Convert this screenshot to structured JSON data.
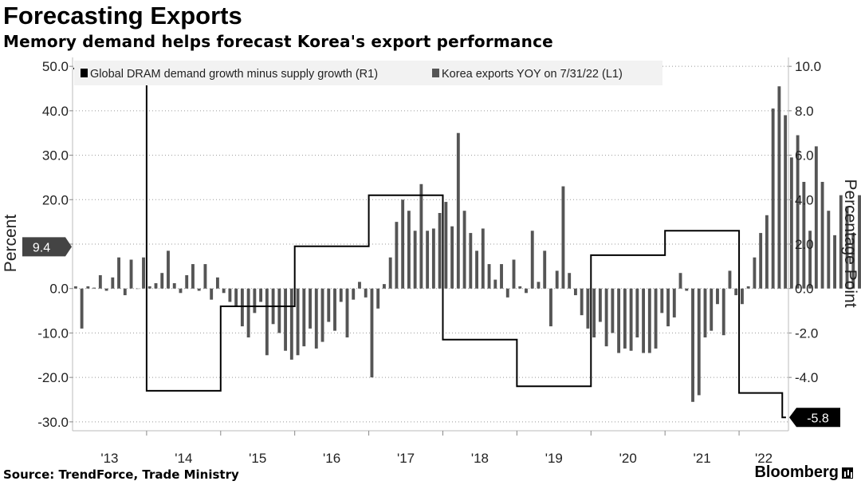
{
  "header": {
    "title": "Forecasting Exports",
    "subtitle": "Memory demand helps forecast Korea's export performance"
  },
  "footer": {
    "source": "Source: TrendForce, Trade Ministry",
    "brand": "Bloomberg"
  },
  "colors": {
    "bars": "#555555",
    "line": "#000000",
    "legend_bg": "#f2f2f2",
    "flag_bg": "#444444"
  },
  "chart_data": {
    "type": "bar+line",
    "left_axis": {
      "label": "Percent",
      "range": [
        -32,
        52
      ],
      "ticks": [
        50,
        40,
        30,
        20,
        10,
        0,
        -10,
        -20,
        -30
      ],
      "tick_labels": [
        "50.0",
        "40.0",
        "30.0",
        "20.0",
        "10.0",
        "0.0",
        "-10.0",
        "-20.0",
        "-30.0"
      ]
    },
    "right_axis": {
      "label": "Percentage Point",
      "range": [
        -6.4,
        10.4
      ],
      "ticks": [
        10,
        8,
        6,
        4,
        2,
        0,
        -2,
        -4
      ],
      "tick_labels": [
        "10.0",
        "8.0",
        "6.0",
        "4.0",
        "2.0",
        "0.0",
        "-2.0",
        "-4.0"
      ]
    },
    "x_axis": {
      "start": "2013-01",
      "end": "2022-08",
      "year_labels": [
        "'13",
        "'14",
        "'15",
        "'16",
        "'17",
        "'18",
        "'19",
        "'20",
        "'21",
        "'22"
      ]
    },
    "series": [
      {
        "name": "Korea exports YOY on 7/31/22 (L1)",
        "axis": "left",
        "type": "bar",
        "monthly_values": [
          0.5,
          -9,
          0.5,
          0.2,
          3,
          -0.5,
          2.5,
          7,
          -1.5,
          6.5,
          0,
          7,
          0.5,
          1.2,
          3.5,
          8.5,
          1.2,
          -1,
          3,
          5.5,
          -0.5,
          5.5,
          -2.5,
          2.5,
          -1,
          -3,
          -4,
          -8.5,
          -11,
          -5.5,
          -3,
          -15,
          -8,
          -10,
          -14,
          -16,
          -15,
          -13,
          -9,
          -13.5,
          -12,
          -7.5,
          -9.5,
          -3,
          -11,
          -2.5,
          1.5,
          -2,
          -20,
          -4.5,
          1,
          7,
          15,
          20,
          17.5,
          13,
          23.5,
          13,
          13.5,
          17,
          19.5,
          14,
          35,
          17.5,
          12.5,
          8.5,
          13.5,
          5.5,
          2,
          5.5,
          -2,
          6.5,
          0.5,
          -1,
          13,
          1.5,
          8.5,
          -8.5,
          4,
          23,
          3.5,
          -1.5,
          -6,
          -9,
          -11,
          -7.5,
          -13,
          -10,
          -14.5,
          -13.5,
          -14,
          -11,
          -14.5,
          -14.5,
          -13.5,
          -5.5,
          -8.5,
          -6.5,
          3.5,
          -0.5,
          -25.5,
          -24,
          -11,
          -9.5,
          -3.5,
          -10.5,
          4,
          -1.5,
          -3.5,
          0.5,
          7,
          12.5,
          16.5,
          40.5,
          45.5,
          39,
          29.5,
          34.5,
          24,
          13,
          32,
          24,
          17.5,
          12,
          21,
          18.5,
          12.5,
          21,
          5,
          9.4
        ],
        "latest_value_label": "9.4"
      },
      {
        "name": "Global DRAM demand growth minus supply growth (R1)",
        "axis": "right",
        "type": "step-line",
        "points": [
          {
            "x": "2013-01",
            "y": 9.9
          },
          {
            "x": "2014-01",
            "y": -4.6
          },
          {
            "x": "2015-01",
            "y": -0.8
          },
          {
            "x": "2016-01",
            "y": 1.9
          },
          {
            "x": "2017-01",
            "y": 4.2
          },
          {
            "x": "2018-01",
            "y": -2.3
          },
          {
            "x": "2019-01",
            "y": -4.4
          },
          {
            "x": "2020-01",
            "y": 1.5
          },
          {
            "x": "2021-01",
            "y": 2.6
          },
          {
            "x": "2022-01",
            "y": -4.7
          },
          {
            "x": "2022-07",
            "y": -4.7
          },
          {
            "x": "2022-08",
            "y": -5.8
          }
        ],
        "latest_value_label": "-5.8"
      }
    ],
    "legend_placement": "top-left",
    "grid": "dotted horizontal"
  }
}
